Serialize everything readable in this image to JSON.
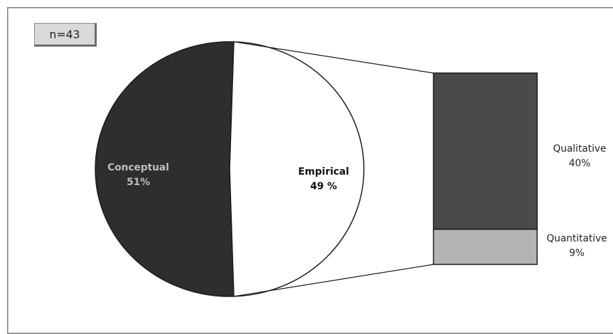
{
  "badge": {
    "text": "n=43"
  },
  "chart_data": {
    "type": "pie",
    "subtype": "pie-of-bar",
    "slices": [
      {
        "label": "Conceptual",
        "value_label": "51%",
        "value": 51,
        "color": "#2e2e2e",
        "label_color": "#bdbdbd"
      },
      {
        "label": "Empirical",
        "value_label": "49 %",
        "value": 49,
        "color": "#ffffff",
        "label_color": "#111111"
      }
    ],
    "breakdown": {
      "of": "Empirical",
      "segments": [
        {
          "label": "Qualitative",
          "value_label": "40%",
          "value": 40,
          "color": "#4a4a4a"
        },
        {
          "label": "Quantitative",
          "value_label": "9%",
          "value": 9,
          "color": "#b3b3b3"
        }
      ]
    }
  }
}
